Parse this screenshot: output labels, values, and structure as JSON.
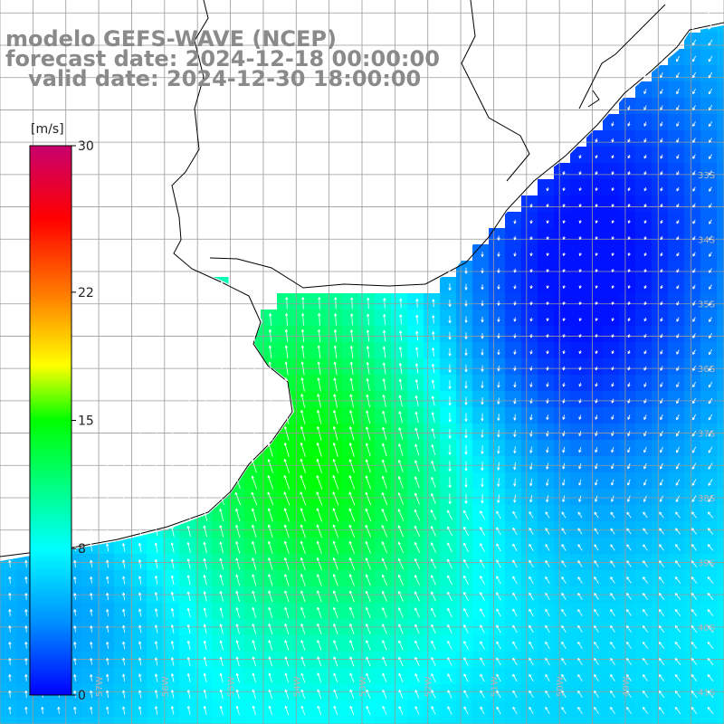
{
  "title": {
    "model": "modelo GEFS-WAVE (NCEP)",
    "forecast_date": "forecast date: 2024-12-18 00:00:00",
    "valid_date": "   valid date: 2024-12-30 18:00:00"
  },
  "colorbar": {
    "unit": "[m/s]",
    "tick_labels": [
      "30",
      "22",
      "15",
      "8",
      "0"
    ],
    "tick_values": [
      30,
      22,
      15,
      8,
      0
    ],
    "range": [
      0,
      30
    ],
    "stops": [
      {
        "value": 0,
        "color": "#0000ff"
      },
      {
        "value": 4,
        "color": "#0090ff"
      },
      {
        "value": 8,
        "color": "#00ffff"
      },
      {
        "value": 11,
        "color": "#00ff90"
      },
      {
        "value": 15,
        "color": "#00ff00"
      },
      {
        "value": 18,
        "color": "#ffff00"
      },
      {
        "value": 22,
        "color": "#ff7800"
      },
      {
        "value": 26,
        "color": "#ff0000"
      },
      {
        "value": 30,
        "color": "#c8006e"
      }
    ]
  },
  "map": {
    "lon_range": [
      -58.5,
      -47.5
    ],
    "lat_range": [
      -41.5,
      -30.3
    ],
    "lat_labels": [
      {
        "lat": -33,
        "text": "33S"
      },
      {
        "lat": -34,
        "text": "34S"
      },
      {
        "lat": -35,
        "text": "35S"
      },
      {
        "lat": -36,
        "text": "36S"
      },
      {
        "lat": -37,
        "text": "37S"
      },
      {
        "lat": -38,
        "text": "38S"
      },
      {
        "lat": -39,
        "text": "39S"
      },
      {
        "lat": -40,
        "text": "40S"
      },
      {
        "lat": -41,
        "text": "41S"
      }
    ],
    "lon_labels": [
      {
        "lon": -58,
        "text": "58W"
      },
      {
        "lon": -57,
        "text": "57W"
      },
      {
        "lon": -56,
        "text": "56W"
      },
      {
        "lon": -55,
        "text": "55W"
      },
      {
        "lon": -54,
        "text": "54W"
      },
      {
        "lon": -53,
        "text": "53W"
      },
      {
        "lon": -52,
        "text": "52W"
      },
      {
        "lon": -51,
        "text": "51W"
      },
      {
        "lon": -50,
        "text": "50W"
      },
      {
        "lon": -49,
        "text": "49W"
      }
    ]
  }
}
